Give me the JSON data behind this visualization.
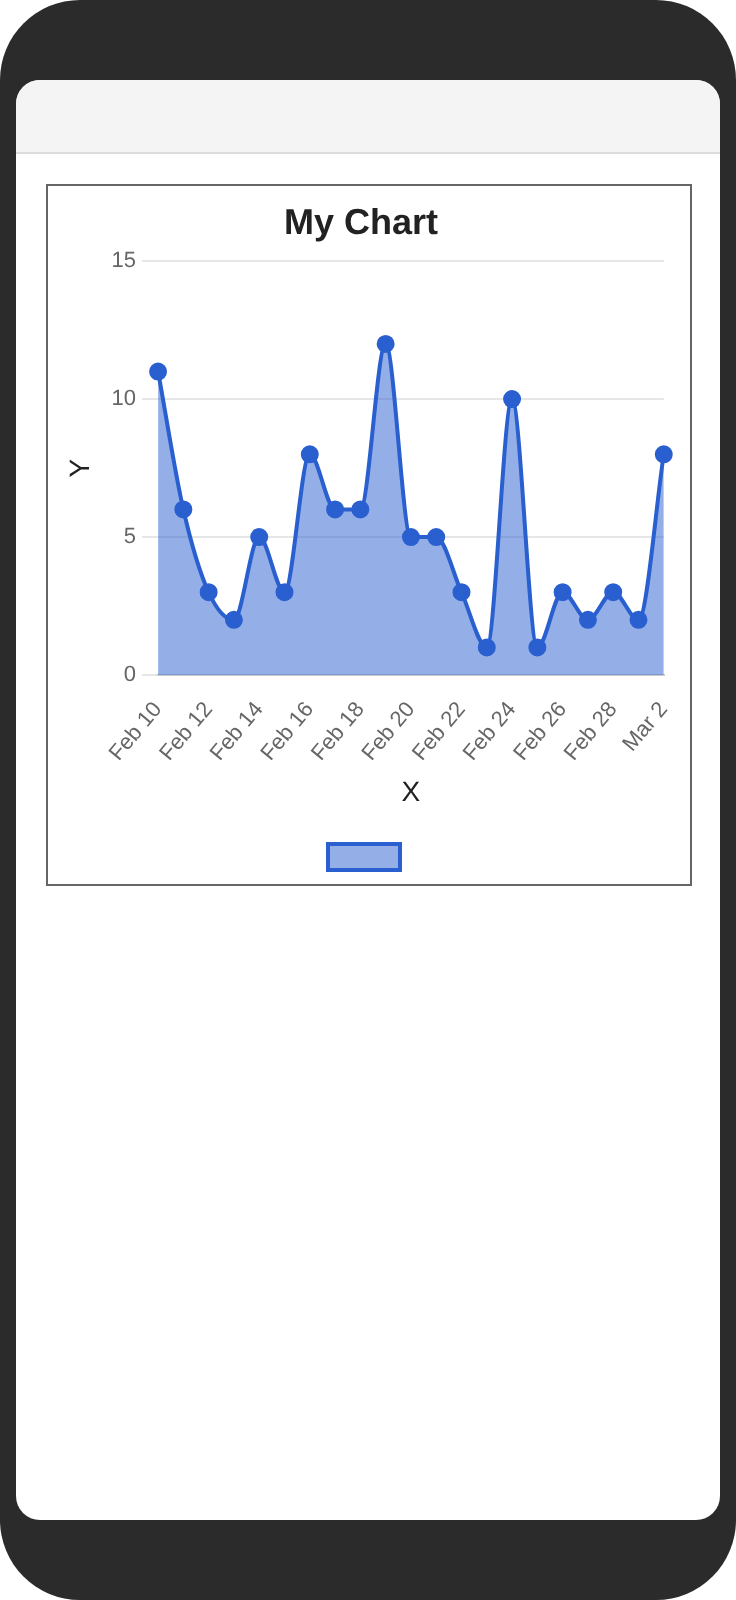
{
  "chart_data": {
    "type": "area",
    "title": "My Chart",
    "xlabel": "X",
    "ylabel": "Y",
    "categories": [
      "Feb 10",
      null,
      "Feb 12",
      null,
      "Feb 14",
      null,
      "Feb 16",
      null,
      "Feb 18",
      null,
      "Feb 20",
      null,
      "Feb 22",
      null,
      "Feb 24",
      null,
      "Feb 26",
      null,
      "Feb 28",
      null,
      "Mar 2"
    ],
    "series": [
      {
        "color": "#2a5fd0",
        "values": [
          11,
          6,
          3,
          2,
          5,
          3,
          8,
          6,
          6,
          12,
          5,
          5,
          3,
          1,
          10,
          1,
          3,
          2,
          3,
          2,
          8
        ]
      }
    ],
    "ylim": [
      0,
      15
    ],
    "yticks": [
      0,
      5,
      10,
      15
    ],
    "grid": "y",
    "marker": "circle",
    "line_style": "solid"
  }
}
